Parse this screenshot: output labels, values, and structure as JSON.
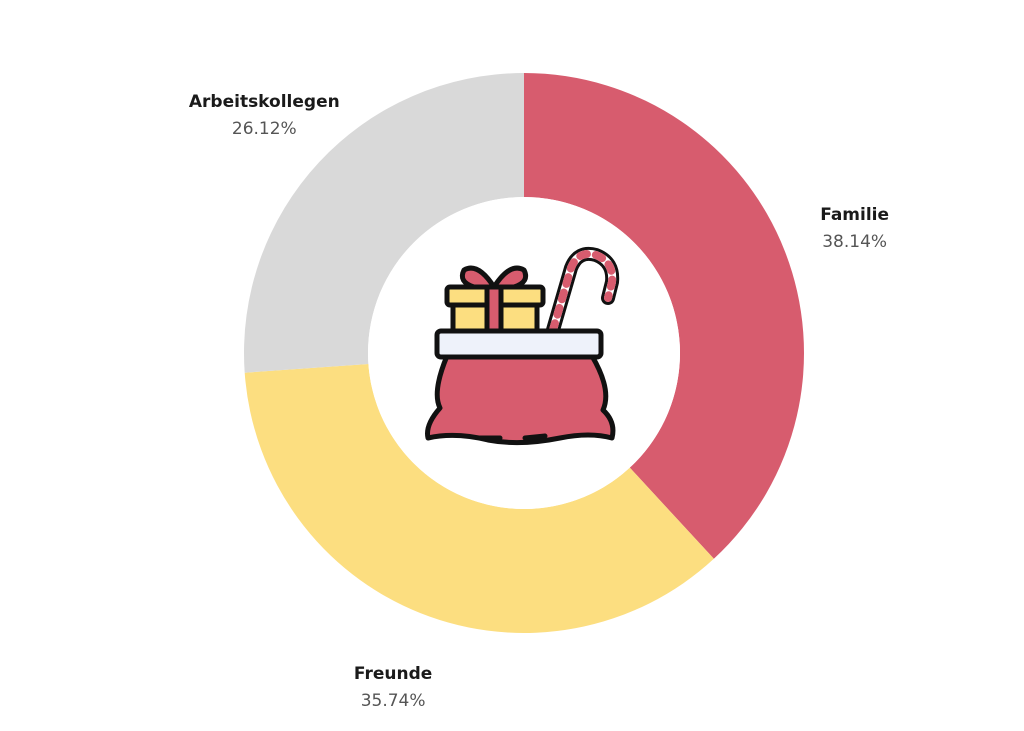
{
  "chart_data": {
    "type": "pie",
    "variant": "donut",
    "slices": [
      {
        "label": "Familie",
        "value": 38.14,
        "value_label": "38.14%",
        "color": "#D75C6E"
      },
      {
        "label": "Freunde",
        "value": 35.74,
        "value_label": "35.74%",
        "color": "#FCDE80"
      },
      {
        "label": "Arbeitskollegen",
        "value": 26.12,
        "value_label": "26.12%",
        "color": "#D9D9D9"
      }
    ],
    "center_icon": "santa-sack-icon",
    "start_angle": "12 o'clock",
    "direction": "clockwise",
    "legend": "none"
  }
}
